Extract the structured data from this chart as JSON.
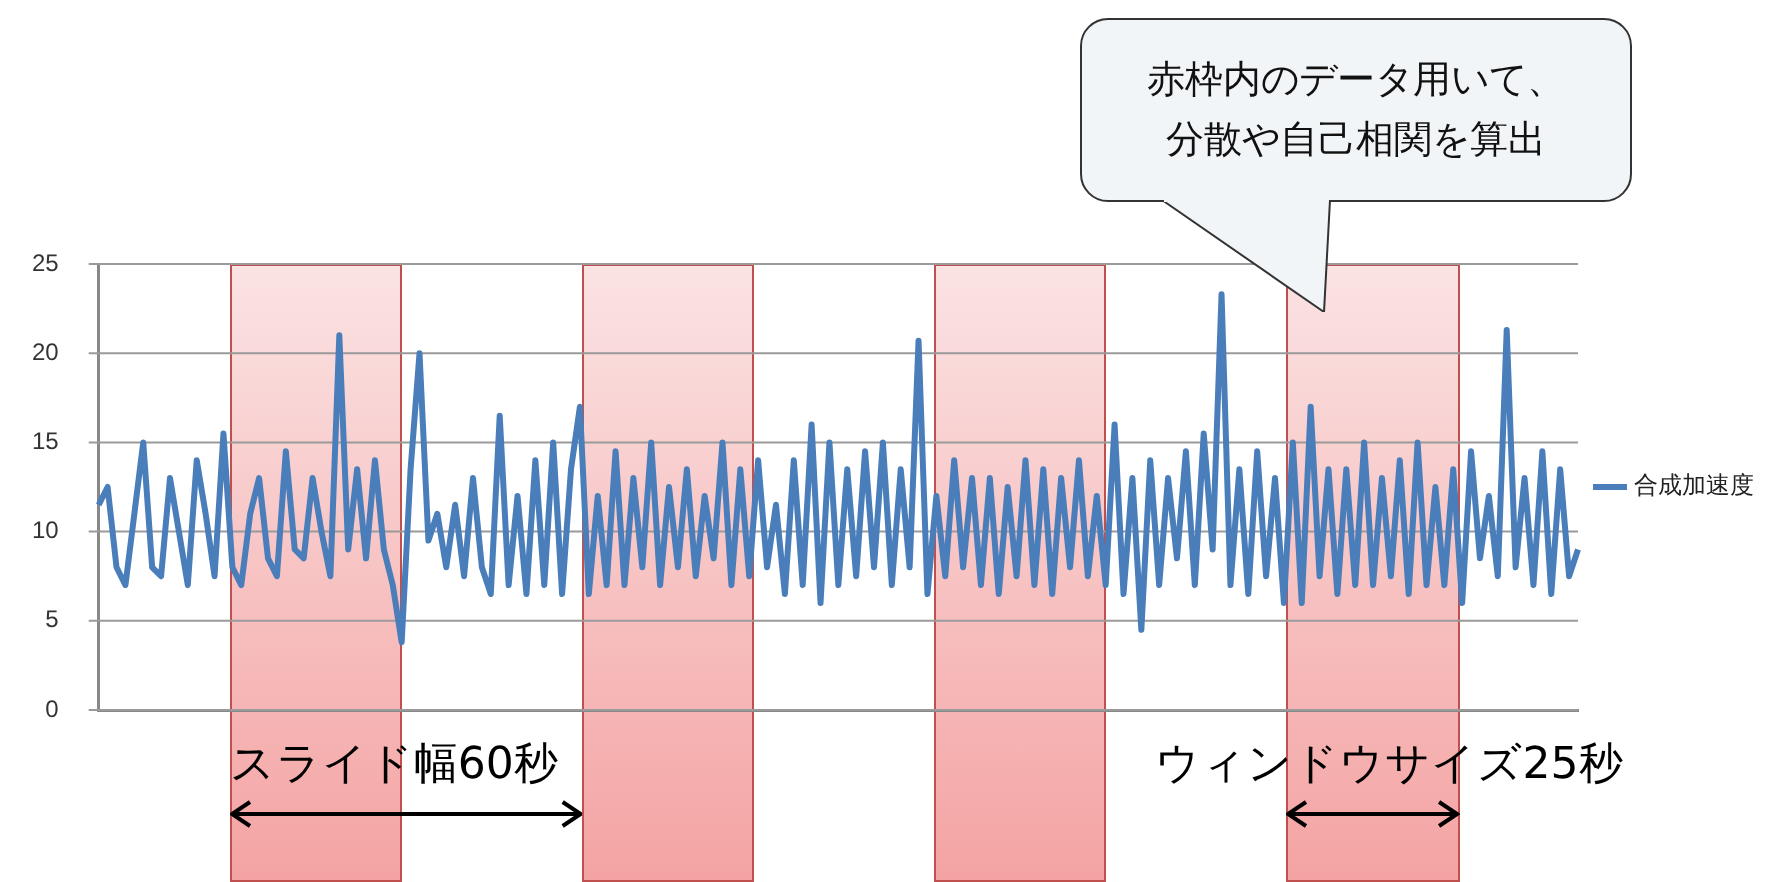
{
  "chart_data": {
    "type": "line",
    "legend": "right",
    "grid": "y",
    "tick_labels": "y",
    "marker": "none",
    "line_style": "solid",
    "ylim": [
      0,
      25
    ],
    "yticks": [
      0,
      5,
      10,
      15,
      20,
      25
    ],
    "categories": [
      null,
      null,
      null,
      null,
      null,
      null,
      null,
      null,
      null,
      null,
      null,
      null,
      null,
      null,
      null,
      null,
      null,
      null,
      null,
      null,
      null,
      null,
      null,
      null,
      null,
      null,
      null,
      null,
      null,
      null,
      null,
      null,
      null,
      null,
      null,
      null,
      null,
      null,
      null,
      null,
      null,
      null,
      null,
      null,
      null,
      null,
      null,
      null,
      null,
      null,
      null,
      null,
      null,
      null,
      null,
      null,
      null,
      null,
      null,
      null,
      null,
      null,
      null,
      null,
      null,
      null,
      null,
      null,
      null,
      null,
      null,
      null,
      null,
      null,
      null,
      null,
      null,
      null,
      null,
      null,
      null,
      null,
      null,
      null,
      null,
      null,
      null,
      null,
      null,
      null,
      null,
      null,
      null,
      null,
      null,
      null,
      null,
      null,
      null,
      null,
      null,
      null,
      null,
      null,
      null,
      null,
      null,
      null,
      null,
      null,
      null,
      null,
      null,
      null,
      null,
      null,
      null,
      null,
      null,
      null,
      null,
      null,
      null,
      null,
      null,
      null,
      null,
      null,
      null,
      null,
      null,
      null,
      null,
      null,
      null,
      null,
      null,
      null,
      null,
      null,
      null,
      null,
      null,
      null,
      null,
      null,
      null,
      null,
      null,
      null,
      null,
      null,
      null,
      null,
      null,
      null,
      null,
      null,
      null,
      null,
      null,
      null,
      null,
      null,
      null,
      null,
      null
    ],
    "series": [
      {
        "name": "合成加速度",
        "color": "#4a7ebb",
        "values": [
          11.5,
          12.5,
          8,
          7,
          11,
          15,
          8,
          7.5,
          13,
          10,
          7,
          14,
          11,
          7.5,
          15.5,
          8,
          7,
          11,
          13,
          8.5,
          7.5,
          14.5,
          9,
          8.5,
          13,
          10,
          7.5,
          21,
          9,
          13.5,
          8.5,
          14,
          9,
          7,
          3.8,
          13.5,
          20,
          9.5,
          11,
          8,
          11.5,
          7.5,
          13,
          8,
          6.5,
          16.5,
          7,
          12,
          6.5,
          14,
          7,
          15,
          6.5,
          13.5,
          17,
          6.5,
          12,
          7,
          14.5,
          7,
          13,
          8,
          15,
          7,
          12.5,
          8,
          13.5,
          7.5,
          12,
          8.5,
          15,
          7,
          13.5,
          7.5,
          14,
          8,
          11.5,
          6.5,
          14,
          7,
          16,
          6,
          15,
          7,
          13.5,
          7.5,
          14.5,
          8,
          15,
          7,
          13.5,
          8,
          20.7,
          6.5,
          12,
          7.5,
          14,
          8,
          13,
          7,
          13,
          6.5,
          12.5,
          7.5,
          14,
          7,
          13.5,
          6.5,
          13,
          8,
          14,
          7.5,
          12,
          7,
          16,
          6.5,
          13,
          4.5,
          14,
          7,
          13,
          8.5,
          14.5,
          7,
          15.5,
          9,
          23.3,
          7,
          13.5,
          6.5,
          14.5,
          7.5,
          13,
          6,
          15,
          6,
          17,
          7.5,
          13.5,
          6.5,
          13.5,
          7,
          15,
          7,
          13,
          7.5,
          14,
          6.5,
          15,
          7,
          12.5,
          7,
          13.5,
          6,
          14.5,
          8.5,
          12,
          7.5,
          21.3,
          8,
          13,
          7,
          14.5,
          6.5,
          13.5,
          7.5,
          9
        ]
      }
    ],
    "annotations": [
      "赤枠内のデータ用いて、分散や自己相関を算出",
      "スライド幅60秒",
      "ウィンドウサイズ25秒"
    ]
  }
}
